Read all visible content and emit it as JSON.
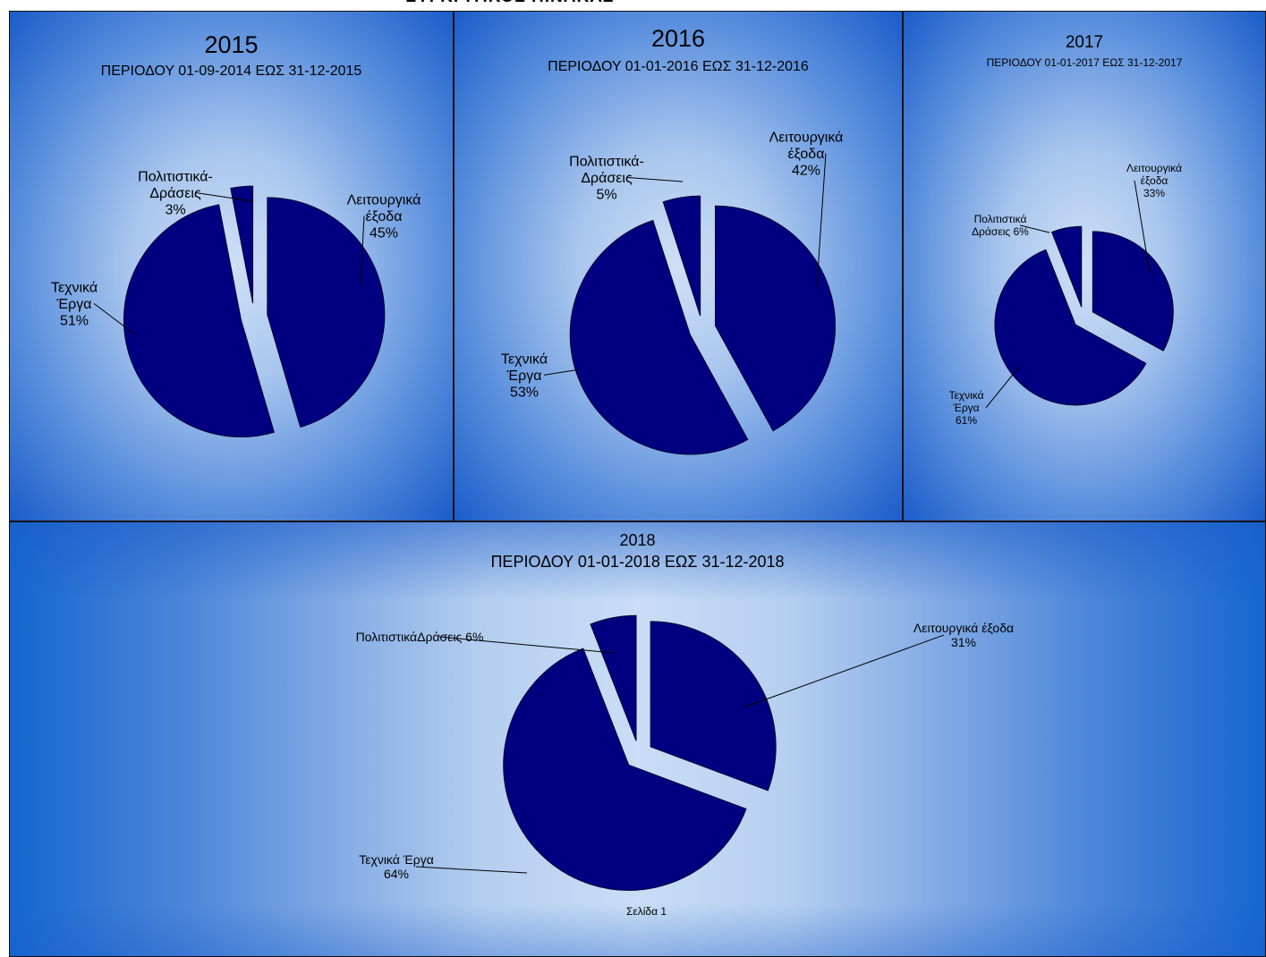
{
  "header": {
    "title": "ΣΥΓΚΡΙΤΙΚΟΣ ΠΙΝΑΚΑΣ"
  },
  "colors": {
    "slice": "#000080",
    "stroke": "#000033",
    "text": "#000000"
  },
  "footer": {
    "page": "Σελίδα 1"
  },
  "chart_data": [
    {
      "type": "pie",
      "title": "2015",
      "subtitle": "ΠΕΡΙΟΔΟΥ 01-09-2014 ΕΩΣ 31-12-2015",
      "slices": [
        {
          "label": "Λειτουργικά έξοδα",
          "label_lines": [
            "Λειτουργικά",
            "έξοδα",
            "45%"
          ],
          "value": 45
        },
        {
          "label": "Τεχνικά Έργα",
          "label_lines": [
            "Τεχνικά",
            "Έργα",
            "51%"
          ],
          "value": 51
        },
        {
          "label": "Πολιτιστικά-Δράσεις",
          "label_lines": [
            "Πολιτιστικά-",
            "Δράσεις",
            "3%"
          ],
          "value": 3
        }
      ]
    },
    {
      "type": "pie",
      "title": "2016",
      "subtitle": "ΠΕΡΙΟΔΟΥ 01-01-2016 ΕΩΣ 31-12-2016",
      "slices": [
        {
          "label": "Λειτουργικά έξοδα",
          "label_lines": [
            "Λειτουργικά",
            "έξοδα",
            "42%"
          ],
          "value": 42
        },
        {
          "label": "Τεχνικά Έργα",
          "label_lines": [
            "Τεχνικά",
            "Έργα",
            "53%"
          ],
          "value": 53
        },
        {
          "label": "Πολιτιστικά-Δράσεις",
          "label_lines": [
            "Πολιτιστικά-",
            "Δράσεις",
            "5%"
          ],
          "value": 5
        }
      ]
    },
    {
      "type": "pie",
      "title": "2017",
      "subtitle": "ΠΕΡΙΟΔΟΥ 01-01-2017 ΕΩΣ 31-12-2017",
      "slices": [
        {
          "label": "Λειτουργικά έξοδα",
          "label_lines": [
            "Λειτουργικά",
            "έξοδα",
            "33%"
          ],
          "value": 33
        },
        {
          "label": "Τεχνικά Έργα",
          "label_lines": [
            "Τεχνικά",
            "Έργα",
            "61%"
          ],
          "value": 61
        },
        {
          "label": "Πολιτιστικά Δράσεις",
          "label_lines": [
            "Πολιτιστικά",
            "Δράσεις 6%"
          ],
          "value": 6
        }
      ]
    },
    {
      "type": "pie",
      "title": "2018",
      "subtitle": "ΠΕΡΙΟΔΟΥ 01-01-2018 ΕΩΣ 31-12-2018",
      "slices": [
        {
          "label": "Λειτουργικά έξοδα",
          "label_lines": [
            "Λειτουργικά έξοδα",
            "31%"
          ],
          "value": 31
        },
        {
          "label": "Τεχνικά Έργα",
          "label_lines": [
            "Τεχνικά Έργα",
            "64%"
          ],
          "value": 64
        },
        {
          "label": "ΠολιτιστικάΔράσεις",
          "label_lines": [
            "ΠολιτιστικάΔράσεις 6%"
          ],
          "value": 6
        }
      ]
    }
  ]
}
